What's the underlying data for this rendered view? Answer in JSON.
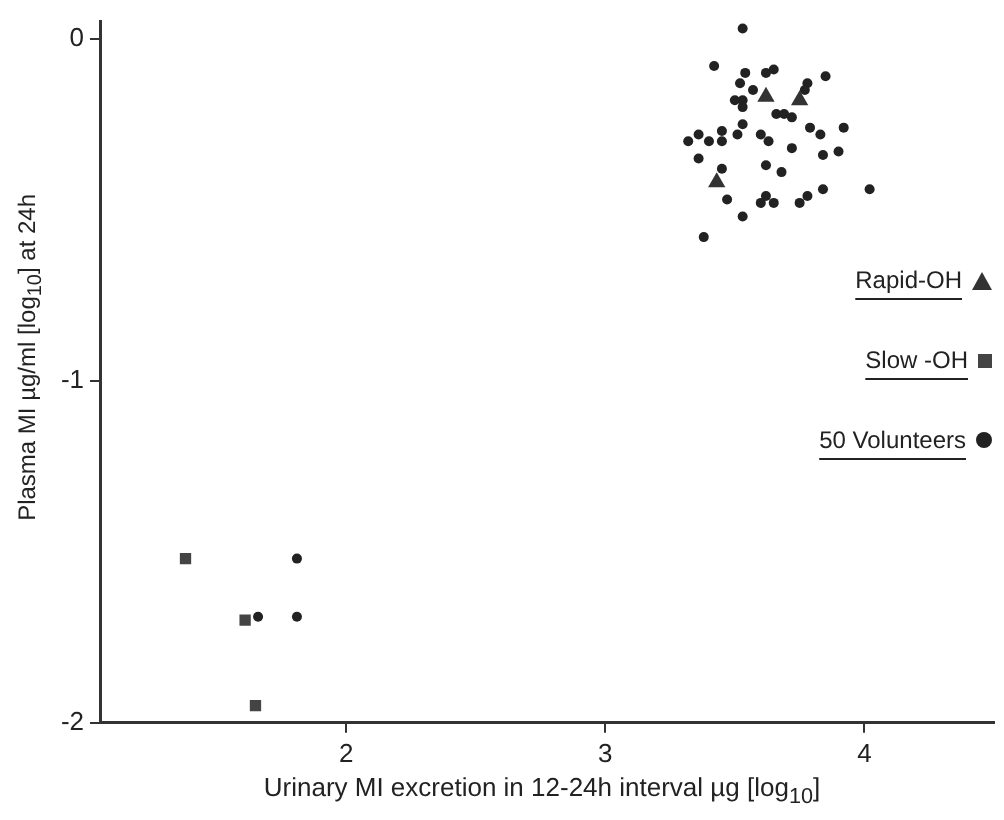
{
  "chart_data": {
    "type": "scatter",
    "xlabel": "Urinary MI excretion in 12-24h interval µg [log$_{10}$]",
    "ylabel": "Plasma MI µg/ml [log$_{10}$] at 24h",
    "xlim": [
      1.05,
      4.5
    ],
    "xticks": [
      2,
      3,
      4
    ],
    "ylim": [
      -2,
      0.05
    ],
    "yticks": [
      0,
      -1,
      -2
    ],
    "grid": false,
    "legend": "right",
    "series": [
      {
        "name": "Rapid-OH",
        "color": "#333333",
        "marker": "triangle",
        "x": [
          3.62,
          3.75,
          3.43
        ],
        "values": [
          -0.17,
          -0.18,
          -0.42
        ]
      },
      {
        "name": "Slow -OH",
        "color": "#444444",
        "marker": "square",
        "x": [
          1.38,
          1.61,
          1.65
        ],
        "values": [
          -1.52,
          -1.7,
          -1.95
        ]
      },
      {
        "name": "50 Volunteers",
        "color": "#222222",
        "marker": "circle",
        "x": [
          3.53,
          3.42,
          3.52,
          3.54,
          3.62,
          3.65,
          3.78,
          3.85,
          3.57,
          3.5,
          3.53,
          3.53,
          3.66,
          3.69,
          3.72,
          3.79,
          3.83,
          3.92,
          3.53,
          3.32,
          3.36,
          3.4,
          3.45,
          3.45,
          3.51,
          3.6,
          3.63,
          3.72,
          3.84,
          3.9,
          3.36,
          3.45,
          3.62,
          3.68,
          3.47,
          3.6,
          3.62,
          3.65,
          3.75,
          3.78,
          3.84,
          4.02,
          3.53,
          3.38,
          3.77
        ],
        "values": [
          0.03,
          -0.08,
          -0.13,
          -0.1,
          -0.1,
          -0.09,
          -0.13,
          -0.11,
          -0.15,
          -0.18,
          -0.18,
          -0.2,
          -0.22,
          -0.22,
          -0.23,
          -0.26,
          -0.28,
          -0.26,
          -0.25,
          -0.3,
          -0.28,
          -0.3,
          -0.27,
          -0.3,
          -0.28,
          -0.28,
          -0.3,
          -0.32,
          -0.34,
          -0.33,
          -0.35,
          -0.38,
          -0.37,
          -0.39,
          -0.47,
          -0.48,
          -0.46,
          -0.48,
          -0.48,
          -0.46,
          -0.44,
          -0.44,
          -0.52,
          -0.58,
          -0.15
        ]
      },
      {
        "color": "#222222",
        "marker": "circle",
        "x": [
          1.66,
          1.81,
          1.81
        ],
        "values": [
          -1.69,
          -1.52,
          -1.69
        ]
      }
    ]
  }
}
